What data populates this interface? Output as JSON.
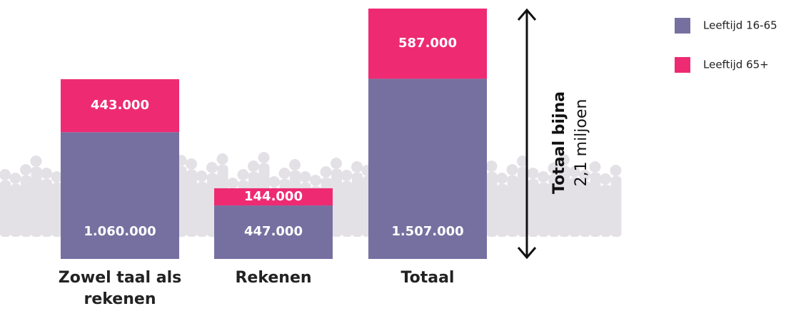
{
  "chart_data": {
    "type": "stacked_bar",
    "categories": [
      "Zowel taal als rekenen",
      "Rekenen",
      "Totaal"
    ],
    "series": [
      {
        "name": "Leeftijd 16-65",
        "color": "#7670a1",
        "values": [
          1060000,
          447000,
          1507000
        ],
        "value_labels": [
          "1.060.000",
          "447.000",
          "1.507.000"
        ]
      },
      {
        "name": "Leeftijd 65+",
        "color": "#ee2a72",
        "values": [
          443000,
          144000,
          587000
        ],
        "value_labels": [
          "443.000",
          "144.000",
          "587.000"
        ]
      }
    ],
    "annotation_title": "Totaal bijna",
    "annotation_text": "2,1 miljoen",
    "legend": "top-right"
  }
}
